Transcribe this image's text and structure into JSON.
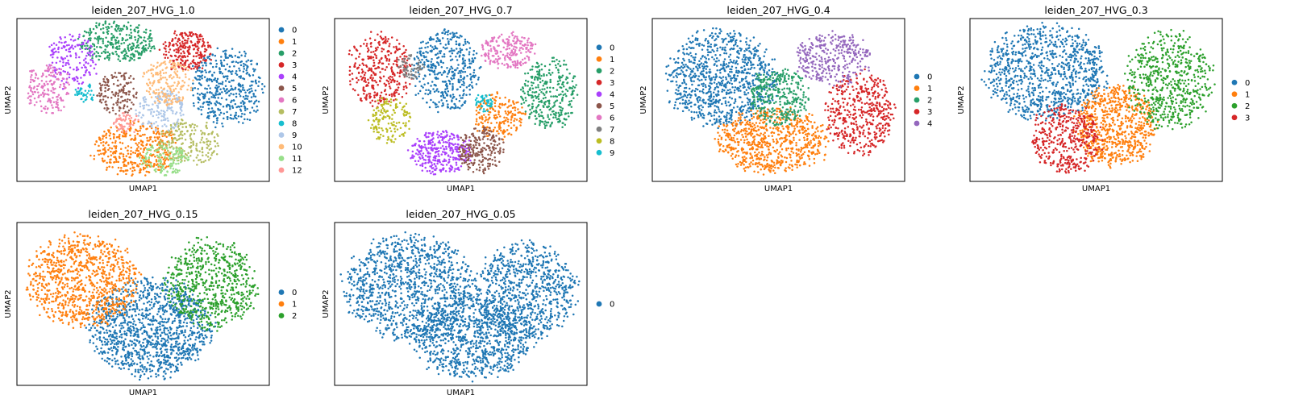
{
  "figure": {
    "panels_visible": 6
  },
  "chart_data": [
    {
      "type": "scatter",
      "title": "leiden_207_HVG_1.0",
      "xlabel": "UMAP1",
      "ylabel": "UMAP2",
      "grid": false,
      "legend": "outside-right",
      "categories": [
        "0",
        "1",
        "2",
        "3",
        "4",
        "5",
        "6",
        "7",
        "8",
        "9",
        "10",
        "11",
        "12"
      ],
      "colors": [
        "#1f77b4",
        "#ff7f0e",
        "#279e68",
        "#d62728",
        "#aa40fc",
        "#8c564b",
        "#e377c2",
        "#b5bd61",
        "#17becf",
        "#aec7e8",
        "#ffbb78",
        "#98df8a",
        "#ff9896"
      ],
      "clusters": [
        {
          "label": "0",
          "cx": 0.83,
          "cy": 0.42,
          "rx": 0.14,
          "ry": 0.24,
          "n": 420
        },
        {
          "label": "1",
          "cx": 0.47,
          "cy": 0.8,
          "rx": 0.17,
          "ry": 0.16,
          "n": 420
        },
        {
          "label": "2",
          "cx": 0.39,
          "cy": 0.14,
          "rx": 0.15,
          "ry": 0.13,
          "n": 300
        },
        {
          "label": "3",
          "cx": 0.67,
          "cy": 0.2,
          "rx": 0.1,
          "ry": 0.13,
          "n": 230
        },
        {
          "label": "4",
          "cx": 0.22,
          "cy": 0.26,
          "rx": 0.1,
          "ry": 0.17,
          "n": 170
        },
        {
          "label": "5",
          "cx": 0.4,
          "cy": 0.46,
          "rx": 0.08,
          "ry": 0.13,
          "n": 150
        },
        {
          "label": "6",
          "cx": 0.12,
          "cy": 0.43,
          "rx": 0.09,
          "ry": 0.15,
          "n": 170
        },
        {
          "label": "7",
          "cx": 0.68,
          "cy": 0.76,
          "rx": 0.12,
          "ry": 0.14,
          "n": 200
        },
        {
          "label": "8",
          "cx": 0.27,
          "cy": 0.46,
          "rx": 0.04,
          "ry": 0.06,
          "n": 40
        },
        {
          "label": "9",
          "cx": 0.57,
          "cy": 0.56,
          "rx": 0.1,
          "ry": 0.13,
          "n": 170
        },
        {
          "label": "10",
          "cx": 0.6,
          "cy": 0.4,
          "rx": 0.1,
          "ry": 0.14,
          "n": 190
        },
        {
          "label": "11",
          "cx": 0.59,
          "cy": 0.86,
          "rx": 0.1,
          "ry": 0.1,
          "n": 140
        },
        {
          "label": "12",
          "cx": 0.43,
          "cy": 0.64,
          "rx": 0.05,
          "ry": 0.07,
          "n": 60
        }
      ]
    },
    {
      "type": "scatter",
      "title": "leiden_207_HVG_0.7",
      "xlabel": "UMAP1",
      "ylabel": "UMAP2",
      "grid": false,
      "legend": "outside-right",
      "categories": [
        "0",
        "1",
        "2",
        "3",
        "4",
        "5",
        "6",
        "7",
        "8",
        "9"
      ],
      "colors": [
        "#1f77b4",
        "#ff7f0e",
        "#279e68",
        "#d62728",
        "#aa40fc",
        "#8c564b",
        "#e377c2",
        "#7f7f7f",
        "#bcbd22",
        "#17becf"
      ],
      "clusters": [
        {
          "label": "0",
          "cx": 0.44,
          "cy": 0.32,
          "rx": 0.13,
          "ry": 0.25,
          "n": 420
        },
        {
          "label": "1",
          "cx": 0.65,
          "cy": 0.6,
          "rx": 0.1,
          "ry": 0.14,
          "n": 200
        },
        {
          "label": "2",
          "cx": 0.85,
          "cy": 0.46,
          "rx": 0.11,
          "ry": 0.22,
          "n": 330
        },
        {
          "label": "3",
          "cx": 0.18,
          "cy": 0.32,
          "rx": 0.13,
          "ry": 0.23,
          "n": 350
        },
        {
          "label": "4",
          "cx": 0.42,
          "cy": 0.82,
          "rx": 0.12,
          "ry": 0.14,
          "n": 330
        },
        {
          "label": "5",
          "cx": 0.58,
          "cy": 0.8,
          "rx": 0.09,
          "ry": 0.14,
          "n": 220
        },
        {
          "label": "6",
          "cx": 0.69,
          "cy": 0.2,
          "rx": 0.11,
          "ry": 0.11,
          "n": 220
        },
        {
          "label": "7",
          "cx": 0.3,
          "cy": 0.3,
          "rx": 0.05,
          "ry": 0.08,
          "n": 60
        },
        {
          "label": "8",
          "cx": 0.22,
          "cy": 0.62,
          "rx": 0.08,
          "ry": 0.14,
          "n": 150
        },
        {
          "label": "9",
          "cx": 0.59,
          "cy": 0.52,
          "rx": 0.04,
          "ry": 0.06,
          "n": 50
        }
      ]
    },
    {
      "type": "scatter",
      "title": "leiden_207_HVG_0.4",
      "xlabel": "UMAP1",
      "ylabel": "UMAP2",
      "grid": false,
      "legend": "outside-right",
      "categories": [
        "0",
        "1",
        "2",
        "3",
        "4"
      ],
      "colors": [
        "#1f77b4",
        "#ff7f0e",
        "#279e68",
        "#d62728",
        "#9467bd"
      ],
      "clusters": [
        {
          "label": "0",
          "cx": 0.27,
          "cy": 0.37,
          "rx": 0.22,
          "ry": 0.29,
          "n": 900
        },
        {
          "label": "1",
          "cx": 0.48,
          "cy": 0.75,
          "rx": 0.22,
          "ry": 0.2,
          "n": 700
        },
        {
          "label": "2",
          "cx": 0.5,
          "cy": 0.48,
          "rx": 0.12,
          "ry": 0.18,
          "n": 330
        },
        {
          "label": "3",
          "cx": 0.82,
          "cy": 0.58,
          "rx": 0.14,
          "ry": 0.25,
          "n": 450
        },
        {
          "label": "4",
          "cx": 0.72,
          "cy": 0.25,
          "rx": 0.15,
          "ry": 0.16,
          "n": 330
        }
      ]
    },
    {
      "type": "scatter",
      "title": "leiden_207_HVG_0.3",
      "xlabel": "UMAP1",
      "ylabel": "UMAP2",
      "grid": false,
      "legend": "outside-right",
      "categories": [
        "0",
        "1",
        "2",
        "3"
      ],
      "colors": [
        "#1f77b4",
        "#ff7f0e",
        "#2ca02c",
        "#d62728"
      ],
      "clusters": [
        {
          "label": "0",
          "cx": 0.3,
          "cy": 0.33,
          "rx": 0.24,
          "ry": 0.29,
          "n": 950
        },
        {
          "label": "1",
          "cx": 0.58,
          "cy": 0.66,
          "rx": 0.16,
          "ry": 0.25,
          "n": 700
        },
        {
          "label": "2",
          "cx": 0.79,
          "cy": 0.38,
          "rx": 0.17,
          "ry": 0.3,
          "n": 600
        },
        {
          "label": "3",
          "cx": 0.38,
          "cy": 0.74,
          "rx": 0.14,
          "ry": 0.21,
          "n": 420
        }
      ]
    },
    {
      "type": "scatter",
      "title": "leiden_207_HVG_0.15",
      "xlabel": "UMAP1",
      "ylabel": "UMAP2",
      "grid": false,
      "legend": "outside-right",
      "categories": [
        "0",
        "1",
        "2"
      ],
      "colors": [
        "#1f77b4",
        "#ff7f0e",
        "#2ca02c"
      ],
      "clusters": [
        {
          "label": "0",
          "cx": 0.53,
          "cy": 0.65,
          "rx": 0.24,
          "ry": 0.3,
          "n": 1200
        },
        {
          "label": "1",
          "cx": 0.26,
          "cy": 0.36,
          "rx": 0.22,
          "ry": 0.28,
          "n": 900
        },
        {
          "label": "2",
          "cx": 0.77,
          "cy": 0.38,
          "rx": 0.18,
          "ry": 0.28,
          "n": 650
        }
      ]
    },
    {
      "type": "scatter",
      "title": "leiden_207_HVG_0.05",
      "xlabel": "UMAP1",
      "ylabel": "UMAP2",
      "grid": false,
      "legend": "outside-right",
      "categories": [
        "0"
      ],
      "colors": [
        "#1f77b4"
      ],
      "clusters": [
        {
          "label": "0",
          "cx": 0.3,
          "cy": 0.4,
          "rx": 0.26,
          "ry": 0.32,
          "n": 1100
        },
        {
          "label": "0",
          "cx": 0.55,
          "cy": 0.7,
          "rx": 0.24,
          "ry": 0.26,
          "n": 900
        },
        {
          "label": "0",
          "cx": 0.76,
          "cy": 0.42,
          "rx": 0.2,
          "ry": 0.3,
          "n": 800
        }
      ]
    }
  ]
}
